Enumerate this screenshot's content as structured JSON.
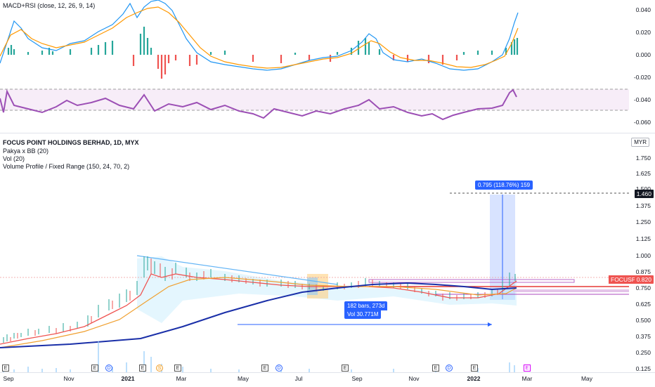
{
  "macd_pane": {
    "title": "MACD+RSI (close, 12, 26, 9, 14)",
    "ticks": [
      "0.040",
      "0.020",
      "0.000",
      "-0.020",
      "-0.040",
      "-0.060"
    ]
  },
  "main_pane": {
    "legend": [
      "FOCUS POINT HOLDINGS BERHAD, 1D, MYX",
      "Pakya x BB (20)",
      "Vol (20)",
      "Volume Profile / Fixed Range (150, 24, 70, 2)"
    ],
    "currency": "MYR",
    "ticks": [
      "1.750",
      "1.625",
      "1.500",
      "1.375",
      "1.250",
      "1.125",
      "1.000",
      "0.875",
      "0.750",
      "0.625",
      "0.500",
      "0.375",
      "0.250",
      "0.125"
    ],
    "target_price": "1.460",
    "symbol": "FOCUSP",
    "last_price": "0.820",
    "measure_label": "0.795 (118.76%) 159",
    "range_label_bars": "182 bars, 273d",
    "range_label_vol": "Vol 30.771M"
  },
  "x_axis": {
    "labels": [
      "Sep",
      "Nov",
      "2021",
      "Mar",
      "May",
      "Jul",
      "Sep",
      "Nov",
      "2022",
      "Mar",
      "May"
    ]
  },
  "events": [
    "E",
    "E",
    "D",
    "E",
    "S",
    "E",
    "E",
    "D",
    "E",
    "E",
    "D",
    "E",
    "E"
  ],
  "colors": {
    "macd": "#2196f3",
    "signal": "#ff9800",
    "rsi": "#9c4fb5",
    "ma_fast": "#ef5350",
    "ma_mid": "#f0a030",
    "ma_slow": "#1a2fa8",
    "trend": "#64b5f6",
    "accent": "#2962ff"
  }
}
